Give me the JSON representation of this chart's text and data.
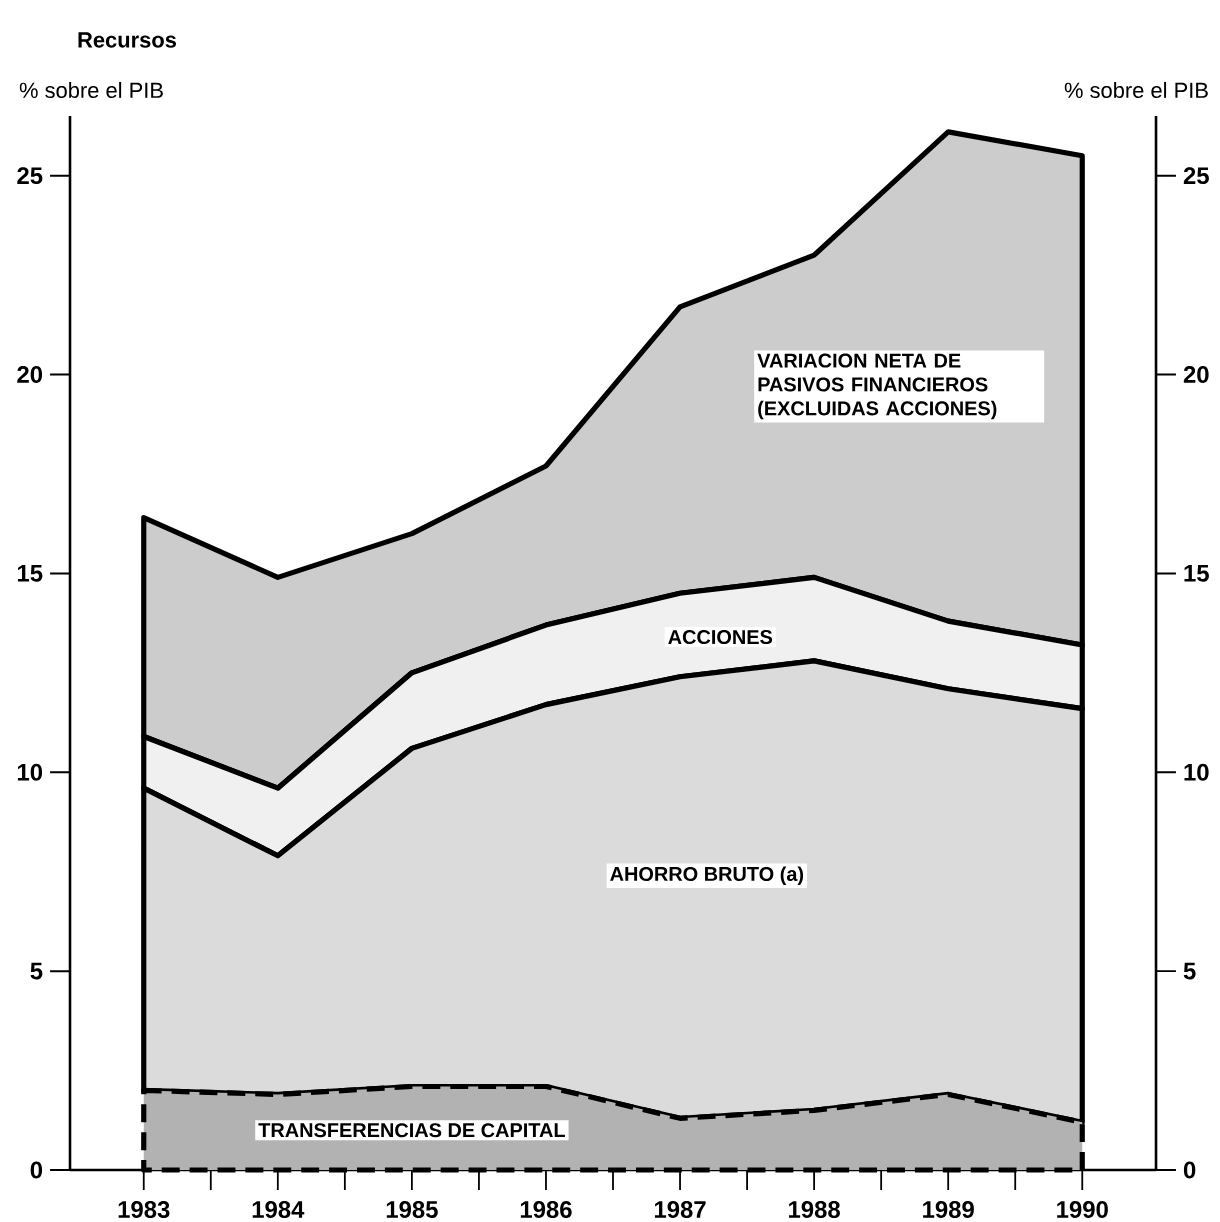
{
  "chart_data": {
    "type": "area",
    "title": "Recursos",
    "annotations": [
      "% sobre el PIB",
      "% sobre el PIB"
    ],
    "stacked": true,
    "x": [
      1983,
      1984,
      1985,
      1986,
      1987,
      1988,
      1989,
      1990
    ],
    "series": [
      {
        "name": "TRANSFERENCIAS DE CAPITAL",
        "color": "#000000",
        "line_style": "dashed",
        "values": [
          2.0,
          1.9,
          2.1,
          2.1,
          1.3,
          1.5,
          1.9,
          1.2
        ]
      },
      {
        "name": "AHORRO BRUTO (a)",
        "color": "#000000",
        "values": [
          7.6,
          6.0,
          8.5,
          9.6,
          11.1,
          11.3,
          10.2,
          10.4
        ]
      },
      {
        "name": "ACCIONES",
        "color": "#000000",
        "values": [
          1.3,
          1.7,
          1.9,
          2.0,
          2.1,
          2.1,
          1.7,
          1.6
        ]
      },
      {
        "name": "VARIACION NETA DE PASIVOS FINANCIEROS (EXCLUIDAS ACCIONES)",
        "color": "#000000",
        "values": [
          5.5,
          5.3,
          3.5,
          4.0,
          7.2,
          8.1,
          12.3,
          12.3
        ]
      }
    ],
    "xlim": [
      1982.45,
      1990.55
    ],
    "xticks": [
      1983,
      {
        "value": 1983.5,
        "label": null
      },
      1984,
      {
        "value": 1984.5,
        "label": null
      },
      1985,
      {
        "value": 1985.5,
        "label": null
      },
      1986,
      {
        "value": 1986.5,
        "label": null
      },
      1987,
      {
        "value": 1987.5,
        "label": null
      },
      1988,
      {
        "value": 1988.5,
        "label": null
      },
      1989,
      {
        "value": 1989.5,
        "label": null
      },
      1990
    ],
    "ylim": [
      0,
      26.5
    ],
    "yticks": [
      0,
      5,
      10,
      15,
      20,
      25
    ],
    "y2lim": [
      0,
      26.5
    ],
    "y2ticks": [
      0,
      5,
      10,
      15,
      20,
      25
    ]
  }
}
